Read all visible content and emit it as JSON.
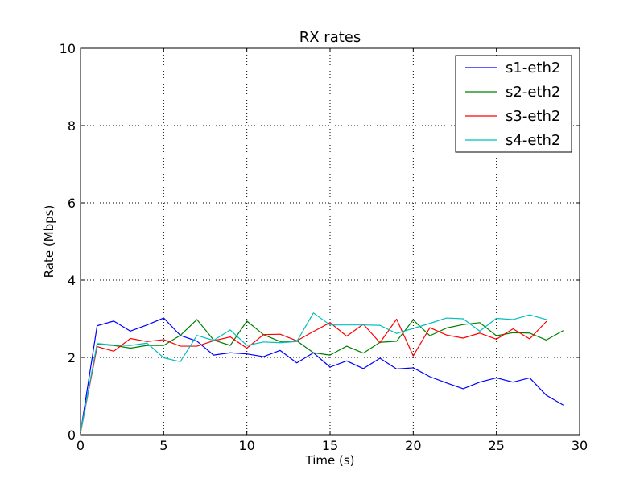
{
  "chart_data": {
    "type": "line",
    "title": "RX rates",
    "xlabel": "Time (s)",
    "ylabel": "Rate (Mbps)",
    "xlim": [
      0,
      30
    ],
    "ylim": [
      0,
      10
    ],
    "xticks": [
      "0",
      "5",
      "10",
      "15",
      "20",
      "25",
      "30"
    ],
    "yticks": [
      "0",
      "2",
      "4",
      "6",
      "8",
      "10"
    ],
    "grid": true,
    "legend_position": "top-right",
    "series": [
      {
        "name": "s1-eth2",
        "color": "#0000ff",
        "x": [
          0,
          1,
          2,
          3,
          4,
          5,
          6,
          7,
          8,
          9,
          10,
          11,
          12,
          13,
          14,
          15,
          16,
          17,
          18,
          19,
          20,
          21,
          22,
          23,
          24,
          25,
          26,
          27,
          28,
          29
        ],
        "values": [
          0.05,
          2.82,
          2.94,
          2.68,
          2.84,
          3.02,
          2.57,
          2.42,
          2.06,
          2.12,
          2.09,
          2.02,
          2.18,
          1.86,
          2.12,
          1.75,
          1.91,
          1.71,
          1.98,
          1.7,
          1.73,
          1.5,
          1.34,
          1.19,
          1.36,
          1.47,
          1.36,
          1.47,
          1.02,
          0.77
        ]
      },
      {
        "name": "s2-eth2",
        "color": "#008000",
        "x": [
          0,
          1,
          2,
          3,
          4,
          5,
          6,
          7,
          8,
          9,
          10,
          11,
          12,
          13,
          14,
          15,
          16,
          17,
          18,
          19,
          20,
          21,
          22,
          23,
          24,
          25,
          26,
          27,
          28,
          29
        ],
        "values": [
          0.05,
          2.34,
          2.31,
          2.24,
          2.31,
          2.31,
          2.57,
          2.98,
          2.45,
          2.31,
          2.94,
          2.59,
          2.41,
          2.43,
          2.12,
          2.06,
          2.29,
          2.11,
          2.39,
          2.42,
          2.97,
          2.56,
          2.76,
          2.85,
          2.9,
          2.56,
          2.64,
          2.63,
          2.45,
          2.69
        ]
      },
      {
        "name": "s3-eth2",
        "color": "#ff0000",
        "x": [
          0,
          1,
          2,
          3,
          4,
          5,
          6,
          7,
          8,
          9,
          10,
          11,
          12,
          13,
          14,
          15,
          16,
          17,
          18,
          19,
          20,
          21,
          22,
          23,
          24,
          25,
          26,
          27,
          28
        ],
        "values": [
          0.05,
          2.28,
          2.16,
          2.49,
          2.41,
          2.46,
          2.29,
          2.29,
          2.43,
          2.53,
          2.24,
          2.59,
          2.6,
          2.43,
          2.67,
          2.9,
          2.55,
          2.86,
          2.38,
          2.99,
          2.04,
          2.77,
          2.58,
          2.5,
          2.63,
          2.47,
          2.74,
          2.48,
          2.93
        ]
      },
      {
        "name": "s4-eth2",
        "color": "#00bfbf",
        "x": [
          0,
          1,
          2,
          3,
          4,
          5,
          6,
          7,
          8,
          9,
          10,
          11,
          12,
          13,
          14,
          15,
          16,
          17,
          18,
          19,
          20,
          21,
          22,
          23,
          24,
          25,
          26,
          27,
          28
        ],
        "values": [
          0.05,
          2.36,
          2.32,
          2.31,
          2.37,
          1.99,
          1.89,
          2.57,
          2.44,
          2.71,
          2.31,
          2.4,
          2.38,
          2.41,
          3.15,
          2.84,
          2.84,
          2.84,
          2.83,
          2.62,
          2.75,
          2.88,
          3.02,
          3.0,
          2.68,
          3.01,
          2.98,
          3.1,
          2.98
        ]
      }
    ]
  }
}
